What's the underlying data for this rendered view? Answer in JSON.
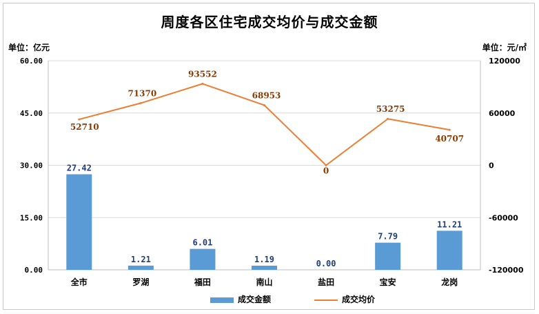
{
  "chart_data": {
    "type": "bar+line",
    "title": "周度各区住宅成交均价与成交金额",
    "y_left_unit": "单位：亿元",
    "y_right_unit": "单位：元/㎡",
    "categories": [
      "全市",
      "罗湖",
      "福田",
      "南山",
      "盐田",
      "宝安",
      "龙岗"
    ],
    "series": [
      {
        "name": "成交金额",
        "type": "bar",
        "axis": "left",
        "color": "#5b9bd5",
        "values": [
          27.42,
          1.21,
          6.01,
          1.19,
          0.0,
          7.79,
          11.21
        ],
        "labels": [
          "27.42",
          "1.21",
          "6.01",
          "1.19",
          "0.00",
          "7.79",
          "11.21"
        ]
      },
      {
        "name": "成交均价",
        "type": "line",
        "axis": "right",
        "color": "#ed7d31",
        "values": [
          52710,
          71370,
          93552,
          68953,
          0,
          53275,
          40707
        ],
        "labels": [
          "52710",
          "71370",
          "93552",
          "68953",
          "0",
          "53275",
          "40707"
        ]
      }
    ],
    "y_left": {
      "min": 0,
      "max": 60,
      "ticks": [
        "0.00",
        "15.00",
        "30.00",
        "45.00",
        "60.00"
      ]
    },
    "y_right": {
      "min": -120000,
      "max": 120000,
      "ticks": [
        "-120000",
        "-60000",
        "0",
        "60000",
        "120000"
      ]
    },
    "grid": true,
    "legend_position": "bottom"
  }
}
